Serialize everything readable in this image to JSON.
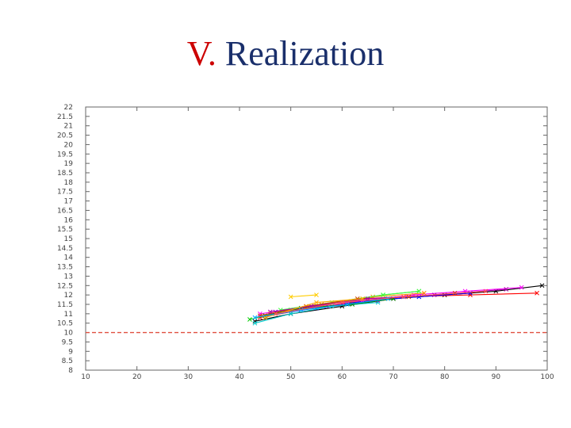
{
  "slide": {
    "number_label": "V.",
    "title": "Realization"
  },
  "colors": {
    "title_number": "#cc0000",
    "title_text": "#1a2f6b",
    "threshold_line": "#e05040"
  },
  "chart_data": {
    "type": "line",
    "title": "",
    "xlabel": "",
    "ylabel": "",
    "xlim": [
      10,
      100
    ],
    "ylim": [
      8,
      22
    ],
    "x_ticks": [
      "10",
      "20",
      "30",
      "40",
      "50",
      "60",
      "70",
      "80",
      "90",
      "100"
    ],
    "y_ticks": [
      "8",
      "8.5",
      "9",
      "9.5",
      "10",
      "10.5",
      "11",
      "11.5",
      "12",
      "12.5",
      "13",
      "13.5",
      "14",
      "14.5",
      "15",
      "15.5",
      "16",
      "16.5",
      "17",
      "17.5",
      "18",
      "18.5",
      "19",
      "19.5",
      "20",
      "20.5",
      "21",
      "21.5",
      "22"
    ],
    "grid": false,
    "legend": "none",
    "reference_line": {
      "y": 10,
      "style": "dashed"
    },
    "series": [
      {
        "color": "#000000",
        "x": [
          43,
          50,
          60,
          70,
          80,
          90,
          99
        ],
        "y": [
          10.6,
          11.0,
          11.4,
          11.8,
          12.0,
          12.2,
          12.5
        ]
      },
      {
        "color": "#ff0000",
        "x": [
          44,
          52,
          62,
          72,
          85,
          98
        ],
        "y": [
          10.8,
          11.2,
          11.6,
          11.9,
          12.0,
          12.1
        ]
      },
      {
        "color": "#00cc00",
        "x": [
          42,
          50,
          60,
          68,
          75
        ],
        "y": [
          10.7,
          11.2,
          11.6,
          12.0,
          12.2
        ]
      },
      {
        "color": "#0000ff",
        "x": [
          45,
          55,
          65,
          75,
          85
        ],
        "y": [
          10.9,
          11.3,
          11.7,
          11.9,
          12.1
        ]
      },
      {
        "color": "#ff00ff",
        "x": [
          44,
          54,
          64,
          74,
          84,
          95
        ],
        "y": [
          11.0,
          11.4,
          11.7,
          12.0,
          12.2,
          12.4
        ]
      },
      {
        "color": "#00cccc",
        "x": [
          43,
          50,
          58,
          67
        ],
        "y": [
          10.5,
          11.0,
          11.4,
          11.6
        ]
      },
      {
        "color": "#ffcc00",
        "x": [
          50,
          55
        ],
        "y": [
          11.9,
          12.0
        ]
      },
      {
        "color": "#ff8800",
        "x": [
          46,
          56,
          66,
          76
        ],
        "y": [
          11.0,
          11.5,
          11.9,
          12.1
        ]
      },
      {
        "color": "#8800cc",
        "x": [
          47,
          57,
          67
        ],
        "y": [
          11.1,
          11.4,
          11.7
        ]
      },
      {
        "color": "#008800",
        "x": [
          45,
          52,
          62,
          70
        ],
        "y": [
          10.9,
          11.3,
          11.5,
          11.8
        ]
      },
      {
        "color": "#44ff44",
        "x": [
          48,
          58,
          68,
          75
        ],
        "y": [
          11.2,
          11.6,
          12.0,
          12.2
        ]
      },
      {
        "color": "#cc4400",
        "x": [
          44,
          53,
          63,
          73,
          82
        ],
        "y": [
          10.9,
          11.4,
          11.8,
          11.9,
          12.1
        ]
      },
      {
        "color": "#aa00aa",
        "x": [
          46,
          54,
          65,
          78,
          92
        ],
        "y": [
          11.1,
          11.4,
          11.8,
          12.0,
          12.3
        ]
      },
      {
        "color": "#ffaa00",
        "x": [
          45,
          55,
          64
        ],
        "y": [
          10.8,
          11.6,
          11.8
        ]
      },
      {
        "color": "#00aaff",
        "x": [
          43,
          52,
          61,
          69
        ],
        "y": [
          10.8,
          11.2,
          11.5,
          11.8
        ]
      },
      {
        "color": "#ff5555",
        "x": [
          47,
          60,
          72,
          88
        ],
        "y": [
          11.0,
          11.6,
          11.9,
          12.2
        ]
      }
    ]
  }
}
